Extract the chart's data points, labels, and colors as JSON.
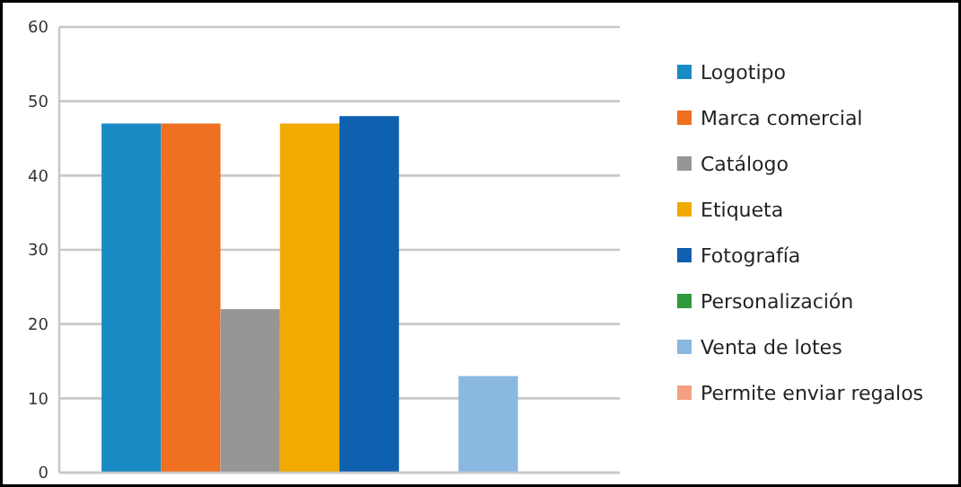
{
  "chart_data": {
    "type": "bar",
    "categories": [
      null
    ],
    "series": [
      {
        "name": "Logotipo",
        "color": "#1a8ac4",
        "values": [
          47
        ]
      },
      {
        "name": "Marca comercial",
        "color": "#ee7020",
        "values": [
          47
        ]
      },
      {
        "name": "Catálogo",
        "color": "#969696",
        "values": [
          22
        ]
      },
      {
        "name": "Etiqueta",
        "color": "#f2a900",
        "values": [
          47
        ]
      },
      {
        "name": "Fotografía",
        "color": "#1060b0",
        "values": [
          48
        ]
      },
      {
        "name": "Personalización",
        "color": "#2e9a3a",
        "values": [
          0
        ]
      },
      {
        "name": "Venta de lotes",
        "color": "#8ab8e0",
        "values": [
          13
        ]
      },
      {
        "name": "Permite enviar regalos",
        "color": "#f4a080",
        "values": [
          0
        ]
      }
    ],
    "ylim": [
      0,
      60
    ],
    "yticks": [
      0,
      10,
      20,
      30,
      40,
      50,
      60
    ],
    "grid": "y",
    "legend": "right"
  }
}
